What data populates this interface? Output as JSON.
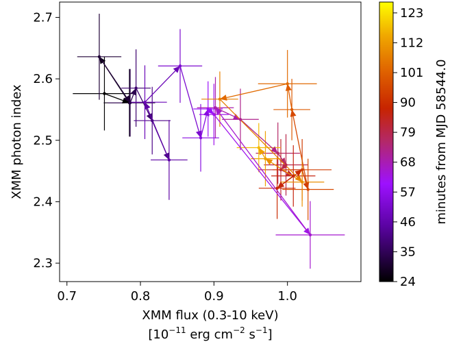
{
  "chart_data": {
    "type": "scatter",
    "xlabel_line1": "XMM flux (0.3-10 keV)",
    "xlabel_line2_prefix": "[10",
    "xlabel_line2_exp1": "−11",
    "xlabel_line2_mid": " erg cm",
    "xlabel_line2_exp2": "−2",
    "xlabel_line2_mid2": " s",
    "xlabel_line2_exp3": "−1",
    "xlabel_line2_suffix": "]",
    "ylabel": "XMM photon index",
    "xlim": [
      0.69,
      1.1
    ],
    "ylim": [
      2.27,
      2.725
    ],
    "xticks": [
      0.7,
      0.8,
      0.9,
      1.0
    ],
    "xtick_labels": [
      "0.7",
      "0.8",
      "0.9",
      "1.0"
    ],
    "yticks": [
      2.3,
      2.4,
      2.5,
      2.6,
      2.7
    ],
    "ytick_labels": [
      "2.3",
      "2.4",
      "2.5",
      "2.6",
      "2.7"
    ],
    "colorbar": {
      "label": "minutes from MJD 58544.0",
      "range": [
        24,
        127
      ],
      "ticks": [
        24,
        35,
        46,
        57,
        68,
        79,
        90,
        101,
        112,
        123
      ],
      "tick_labels": [
        "24",
        "35",
        "46",
        "57",
        "68",
        "79",
        "90",
        "101",
        "112",
        "123"
      ],
      "colormap": "gnuplot"
    },
    "points": [
      {
        "x": 0.751,
        "y": 2.576,
        "xerr": 0.043,
        "yerr": 0.06,
        "t": 24
      },
      {
        "x": 0.785,
        "y": 2.561,
        "xerr": 0.035,
        "yerr": 0.055,
        "t": 27
      },
      {
        "x": 0.744,
        "y": 2.636,
        "xerr": 0.03,
        "yerr": 0.07,
        "t": 31
      },
      {
        "x": 0.786,
        "y": 2.561,
        "xerr": 0.03,
        "yerr": 0.055,
        "t": 34
      },
      {
        "x": 0.794,
        "y": 2.585,
        "xerr": 0.02,
        "yerr": 0.063,
        "t": 38
      },
      {
        "x": 0.816,
        "y": 2.532,
        "xerr": 0.025,
        "yerr": 0.055,
        "t": 41
      },
      {
        "x": 0.839,
        "y": 2.468,
        "xerr": 0.025,
        "yerr": 0.065,
        "t": 45
      },
      {
        "x": 0.806,
        "y": 2.562,
        "xerr": 0.03,
        "yerr": 0.06,
        "t": 48
      },
      {
        "x": 0.854,
        "y": 2.621,
        "xerr": 0.03,
        "yerr": 0.06,
        "t": 52
      },
      {
        "x": 0.882,
        "y": 2.504,
        "xerr": 0.025,
        "yerr": 0.055,
        "t": 55
      },
      {
        "x": 0.892,
        "y": 2.551,
        "xerr": 0.02,
        "yerr": 0.045,
        "t": 59
      },
      {
        "x": 0.9,
        "y": 2.542,
        "xerr": 0.02,
        "yerr": 0.05,
        "t": 62
      },
      {
        "x": 1.031,
        "y": 2.346,
        "xerr": 0.047,
        "yerr": 0.055,
        "t": 65
      },
      {
        "x": 0.902,
        "y": 2.553,
        "xerr": 0.025,
        "yerr": 0.05,
        "t": 69
      },
      {
        "x": 0.936,
        "y": 2.534,
        "xerr": 0.025,
        "yerr": 0.05,
        "t": 72
      },
      {
        "x": 0.987,
        "y": 2.479,
        "xerr": 0.03,
        "yerr": 0.05,
        "t": 76
      },
      {
        "x": 0.998,
        "y": 2.46,
        "xerr": 0.03,
        "yerr": 0.05,
        "t": 79
      },
      {
        "x": 0.991,
        "y": 2.452,
        "xerr": 0.03,
        "yerr": 0.05,
        "t": 82
      },
      {
        "x": 1.008,
        "y": 2.442,
        "xerr": 0.03,
        "yerr": 0.05,
        "t": 86
      },
      {
        "x": 0.986,
        "y": 2.422,
        "xerr": 0.025,
        "yerr": 0.05,
        "t": 89
      },
      {
        "x": 1.02,
        "y": 2.452,
        "xerr": 0.04,
        "yerr": 0.05,
        "t": 93
      },
      {
        "x": 1.028,
        "y": 2.42,
        "xerr": 0.035,
        "yerr": 0.05,
        "t": 96
      },
      {
        "x": 1.006,
        "y": 2.55,
        "xerr": 0.025,
        "yerr": 0.05,
        "t": 100
      },
      {
        "x": 1.0,
        "y": 2.592,
        "xerr": 0.04,
        "yerr": 0.055,
        "t": 103
      },
      {
        "x": 0.908,
        "y": 2.567,
        "xerr": 0.025,
        "yerr": 0.045,
        "t": 107
      },
      {
        "x": 1.02,
        "y": 2.432,
        "xerr": 0.03,
        "yerr": 0.04,
        "t": 110
      },
      {
        "x": 0.97,
        "y": 2.47,
        "xerr": 0.02,
        "yerr": 0.045,
        "t": 113
      },
      {
        "x": 0.961,
        "y": 2.488,
        "xerr": 0.03,
        "yerr": 0.04,
        "t": 117
      }
    ]
  }
}
